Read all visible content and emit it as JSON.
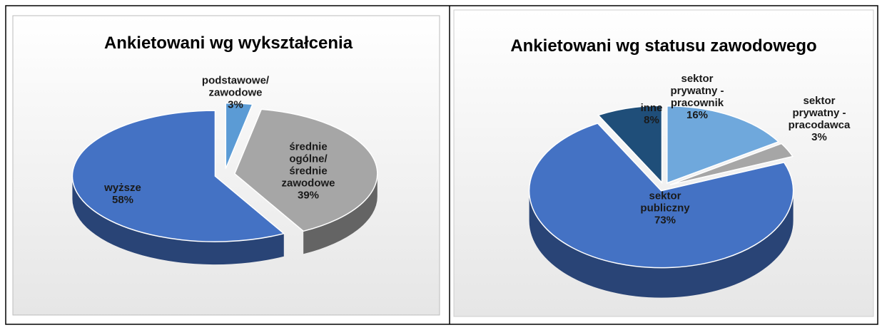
{
  "chart_data": [
    {
      "type": "pie",
      "title": "Ankietowani wg wykształcenia",
      "categories": [
        "podstawowe/\nzawodowe",
        "średnie\nogólne/\nśrednie\nzawodowe",
        "wyższe"
      ],
      "values": [
        3,
        39,
        58
      ],
      "value_labels": [
        "3%",
        "39%",
        "58%"
      ],
      "colors": [
        "#5b9bd5",
        "#a6a6a6",
        "#4472c4"
      ]
    },
    {
      "type": "pie",
      "title": "Ankietowani wg statusu zawodowego",
      "categories": [
        "sektor\nprywatny -\npracownik",
        "sektor\nprywatny -\npracodawca",
        "sektor\npubliczny",
        "inne"
      ],
      "values": [
        16,
        3,
        73,
        8
      ],
      "value_labels": [
        "16%",
        "3%",
        "73%",
        "8%"
      ],
      "colors": [
        "#6fa8dc",
        "#a6a6a6",
        "#4472c4",
        "#1f4e79"
      ]
    }
  ]
}
